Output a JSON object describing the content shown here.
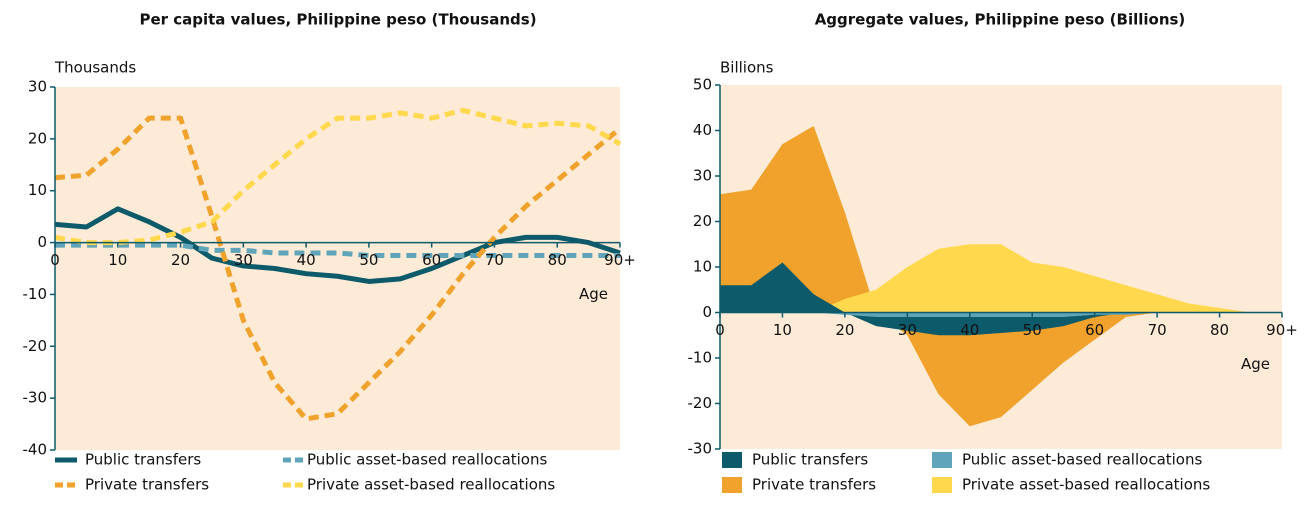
{
  "chart_data": [
    {
      "type": "line",
      "title": "Per capita values, Philippine peso (Thousands)",
      "y_axis_label": "Thousands",
      "x_axis_label": "Age",
      "x": [
        0,
        5,
        10,
        15,
        20,
        25,
        30,
        35,
        40,
        45,
        50,
        55,
        60,
        65,
        70,
        75,
        80,
        85,
        90
      ],
      "xlim": [
        0,
        90
      ],
      "xticks": [
        0,
        10,
        20,
        30,
        40,
        50,
        60,
        70,
        80,
        {
          "value": 90,
          "label": "90+"
        }
      ],
      "ylim": [
        -40,
        30
      ],
      "yticks": [
        -40,
        -30,
        -20,
        -10,
        0,
        10,
        20,
        30
      ],
      "series": [
        {
          "name": "Public transfers",
          "color": "#0d5a6a",
          "dashed": false,
          "values": [
            3.5,
            3,
            6.5,
            4,
            1,
            -3,
            -4.5,
            -5,
            -6,
            -6.5,
            -7.5,
            -7,
            -5,
            -2.5,
            0,
            1,
            1,
            0,
            -2
          ]
        },
        {
          "name": "Public asset-based reallocations",
          "color": "#5fa4b8",
          "dashed": true,
          "values": [
            -0.5,
            -0.5,
            -0.5,
            -0.5,
            -0.5,
            -1.5,
            -1.5,
            -2,
            -2,
            -2,
            -2.5,
            -2.5,
            -2.5,
            -2.5,
            -2.5,
            -2.5,
            -2.5,
            -2.5,
            -2.5
          ]
        },
        {
          "name": "Private transfers",
          "color": "#f0a22c",
          "dashed": true,
          "values": [
            12.5,
            13,
            18,
            24,
            24,
            5,
            -15,
            -27,
            -34,
            -33,
            -27,
            -21,
            -14,
            -6,
            1,
            7,
            12,
            17,
            22
          ]
        },
        {
          "name": "Private asset-based reallocations",
          "color": "#ffd84d",
          "dashed": true,
          "values": [
            1,
            0,
            0,
            0.5,
            2,
            4,
            10,
            15,
            20,
            24,
            24,
            25,
            24,
            25.5,
            24,
            22.5,
            23,
            22.5,
            19
          ]
        }
      ]
    },
    {
      "type": "area",
      "title": "Aggregate values, Philippine peso (Billions)",
      "y_axis_label": "Billions",
      "x_axis_label": "Age",
      "x": [
        0,
        5,
        10,
        15,
        20,
        25,
        30,
        35,
        40,
        45,
        50,
        55,
        60,
        65,
        70,
        75,
        80,
        85,
        90
      ],
      "xlim": [
        0,
        90
      ],
      "xticks": [
        0,
        10,
        20,
        30,
        40,
        50,
        60,
        70,
        80,
        {
          "value": 90,
          "label": "90+"
        }
      ],
      "ylim": [
        -30,
        50
      ],
      "yticks": [
        -30,
        -20,
        -10,
        0,
        10,
        20,
        30,
        40,
        50
      ],
      "series": [
        {
          "name": "Public transfers",
          "color": "#0d5a6a",
          "values": [
            6,
            6,
            11,
            4,
            0,
            -3,
            -4,
            -5,
            -5,
            -4.5,
            -4,
            -3,
            -1,
            0,
            0,
            0,
            0,
            0,
            0
          ]
        },
        {
          "name": "Public asset-based reallocations",
          "color": "#5fa4b8",
          "values": [
            0,
            0,
            0,
            0,
            -0.5,
            -1,
            -1,
            -1,
            -1,
            -1,
            -1,
            -1,
            -0.5,
            -0.5,
            0,
            0,
            0,
            0,
            0
          ]
        },
        {
          "name": "Private transfers",
          "color": "#f0a22c",
          "values": [
            26,
            27,
            37,
            41,
            22,
            0,
            -5,
            -18,
            -25,
            -23,
            -17,
            -11,
            -6,
            -1,
            0,
            0,
            0,
            0,
            0
          ]
        },
        {
          "name": "Private asset-based reallocations",
          "color": "#ffd84d",
          "values": [
            0,
            0,
            0,
            0,
            3,
            5,
            10,
            14,
            15,
            15,
            11,
            10,
            8,
            6,
            4,
            2,
            1,
            0,
            0
          ]
        }
      ]
    }
  ]
}
